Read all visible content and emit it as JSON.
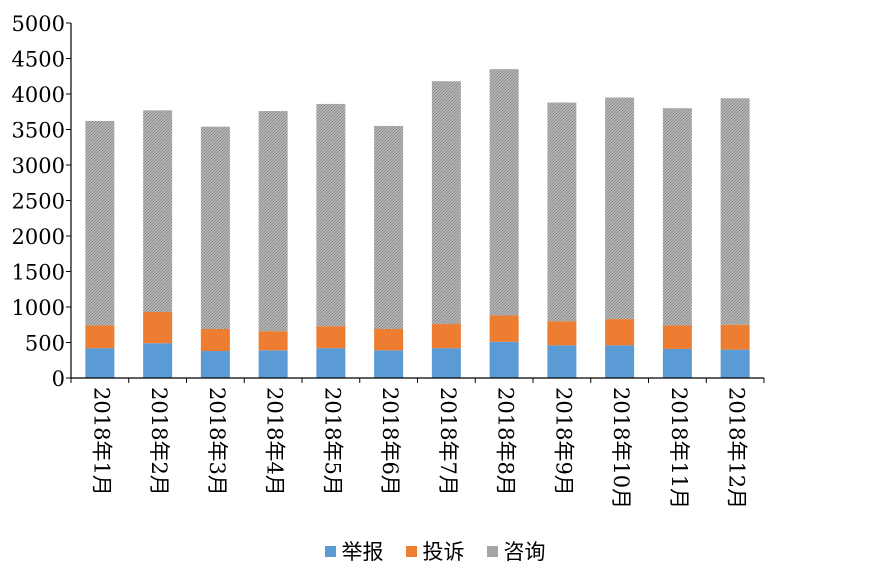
{
  "chart_data": {
    "type": "bar",
    "stacked": true,
    "title": "",
    "xlabel": "",
    "ylabel": "",
    "categories": [
      "2018年1月",
      "2018年2月",
      "2018年3月",
      "2018年4月",
      "2018年5月",
      "2018年6月",
      "2018年7月",
      "2018年8月",
      "2018年9月",
      "2018年10月",
      "2018年11月",
      "2018年12月"
    ],
    "series": [
      {
        "name": "举报",
        "color": "#5B9BD5",
        "values": [
          420,
          490,
          380,
          390,
          420,
          390,
          420,
          510,
          460,
          460,
          410,
          400
        ]
      },
      {
        "name": "投诉",
        "color": "#ED7D31",
        "values": [
          320,
          440,
          310,
          270,
          310,
          300,
          340,
          370,
          340,
          370,
          330,
          350
        ]
      },
      {
        "name": "咨询",
        "color": "#A5A5A5",
        "values": [
          2880,
          2840,
          2850,
          3100,
          3130,
          2860,
          3420,
          3470,
          3080,
          3120,
          3060,
          3190
        ]
      }
    ],
    "ylim": [
      0,
      5000
    ],
    "yticks": [
      0,
      500,
      1000,
      1500,
      2000,
      2500,
      3000,
      3500,
      4000,
      4500,
      5000
    ],
    "grid": false,
    "legend_position": "bottom"
  }
}
